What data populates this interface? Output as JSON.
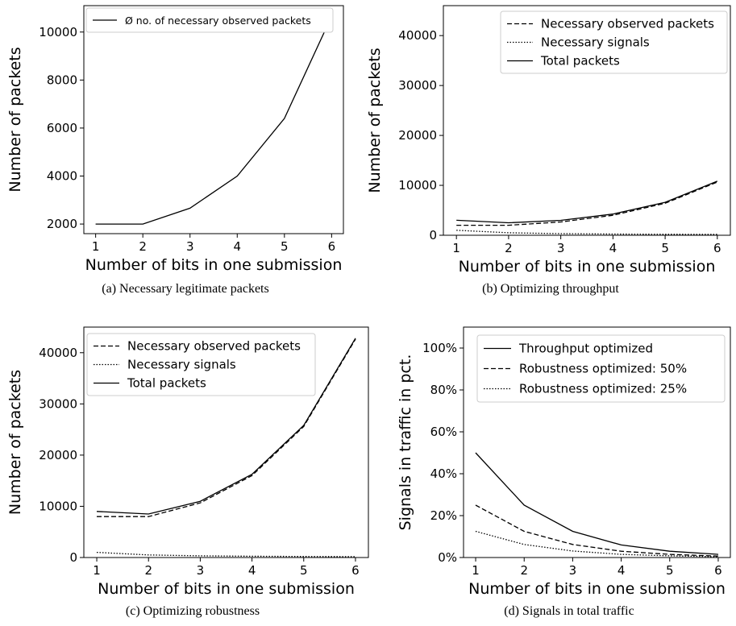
{
  "chart_data": [
    {
      "type": "line",
      "caption": "(a) Necessary legitimate packets",
      "xlabel": "Number of bits in one submission",
      "ylabel": "Number of packets",
      "x": [
        1,
        2,
        3,
        4,
        5,
        6
      ],
      "xlim": [
        0.75,
        6.25
      ],
      "ylim": [
        1600,
        11100
      ],
      "yticks": [
        2000,
        4000,
        6000,
        8000,
        10000
      ],
      "grid": false,
      "legend_position": "top-left",
      "series": [
        {
          "name": "Ø no. of necessary observed packets",
          "style": "solid",
          "values": [
            2000,
            2000,
            2660,
            4000,
            6400,
            10660
          ]
        }
      ]
    },
    {
      "type": "line",
      "caption": "(b) Optimizing throughput",
      "xlabel": "Number of bits in one submission",
      "ylabel": "Number of packets",
      "x": [
        1,
        2,
        3,
        4,
        5,
        6
      ],
      "xlim": [
        0.75,
        6.25
      ],
      "ylim": [
        0,
        46000
      ],
      "yticks": [
        0,
        10000,
        20000,
        30000,
        40000
      ],
      "grid": false,
      "legend_position": "top-right",
      "series": [
        {
          "name": "Necessary observed packets",
          "style": "dashed",
          "values": [
            2000,
            2000,
            2660,
            4000,
            6400,
            10660
          ]
        },
        {
          "name": "Necessary signals",
          "style": "dotted",
          "values": [
            1000,
            500,
            330,
            250,
            200,
            170
          ]
        },
        {
          "name": "Total packets",
          "style": "solid",
          "values": [
            3000,
            2500,
            2990,
            4250,
            6600,
            10830
          ]
        }
      ]
    },
    {
      "type": "line",
      "caption": "(c) Optimizing robustness",
      "xlabel": "Number of bits in one submission",
      "ylabel": "Number of packets",
      "x": [
        1,
        2,
        3,
        4,
        5,
        6
      ],
      "xlim": [
        0.75,
        6.25
      ],
      "ylim": [
        0,
        45000
      ],
      "yticks": [
        0,
        10000,
        20000,
        30000,
        40000
      ],
      "grid": false,
      "legend_position": "top-left",
      "series": [
        {
          "name": "Necessary observed packets",
          "style": "dashed",
          "values": [
            8000,
            8000,
            10660,
            16000,
            25600,
            42660
          ]
        },
        {
          "name": "Necessary signals",
          "style": "dotted",
          "values": [
            1000,
            500,
            330,
            250,
            200,
            170
          ]
        },
        {
          "name": "Total packets",
          "style": "solid",
          "values": [
            9000,
            8500,
            10990,
            16250,
            25800,
            42830
          ]
        }
      ]
    },
    {
      "type": "line",
      "caption": "(d) Signals in total traffic",
      "xlabel": "Number of bits in one submission",
      "ylabel": "Signals in traffic in pct.",
      "x": [
        1,
        2,
        3,
        4,
        5,
        6
      ],
      "xlim": [
        0.75,
        6.25
      ],
      "ylim": [
        0,
        110
      ],
      "yticks": [
        0,
        20,
        40,
        60,
        80,
        100
      ],
      "ytick_suffix": "%",
      "grid": false,
      "legend_position": "top-right",
      "series": [
        {
          "name": "Throughput optimized",
          "style": "solid",
          "values": [
            50,
            25,
            12.5,
            6,
            3,
            1.5
          ]
        },
        {
          "name": "Robustness optimized: 50%",
          "style": "dashed",
          "values": [
            25,
            12.5,
            6.25,
            3,
            1.5,
            0.7
          ]
        },
        {
          "name": "Robustness optimized: 25%",
          "style": "dotted",
          "values": [
            12.5,
            6.25,
            3.1,
            1.5,
            0.8,
            0.4
          ]
        }
      ]
    }
  ]
}
